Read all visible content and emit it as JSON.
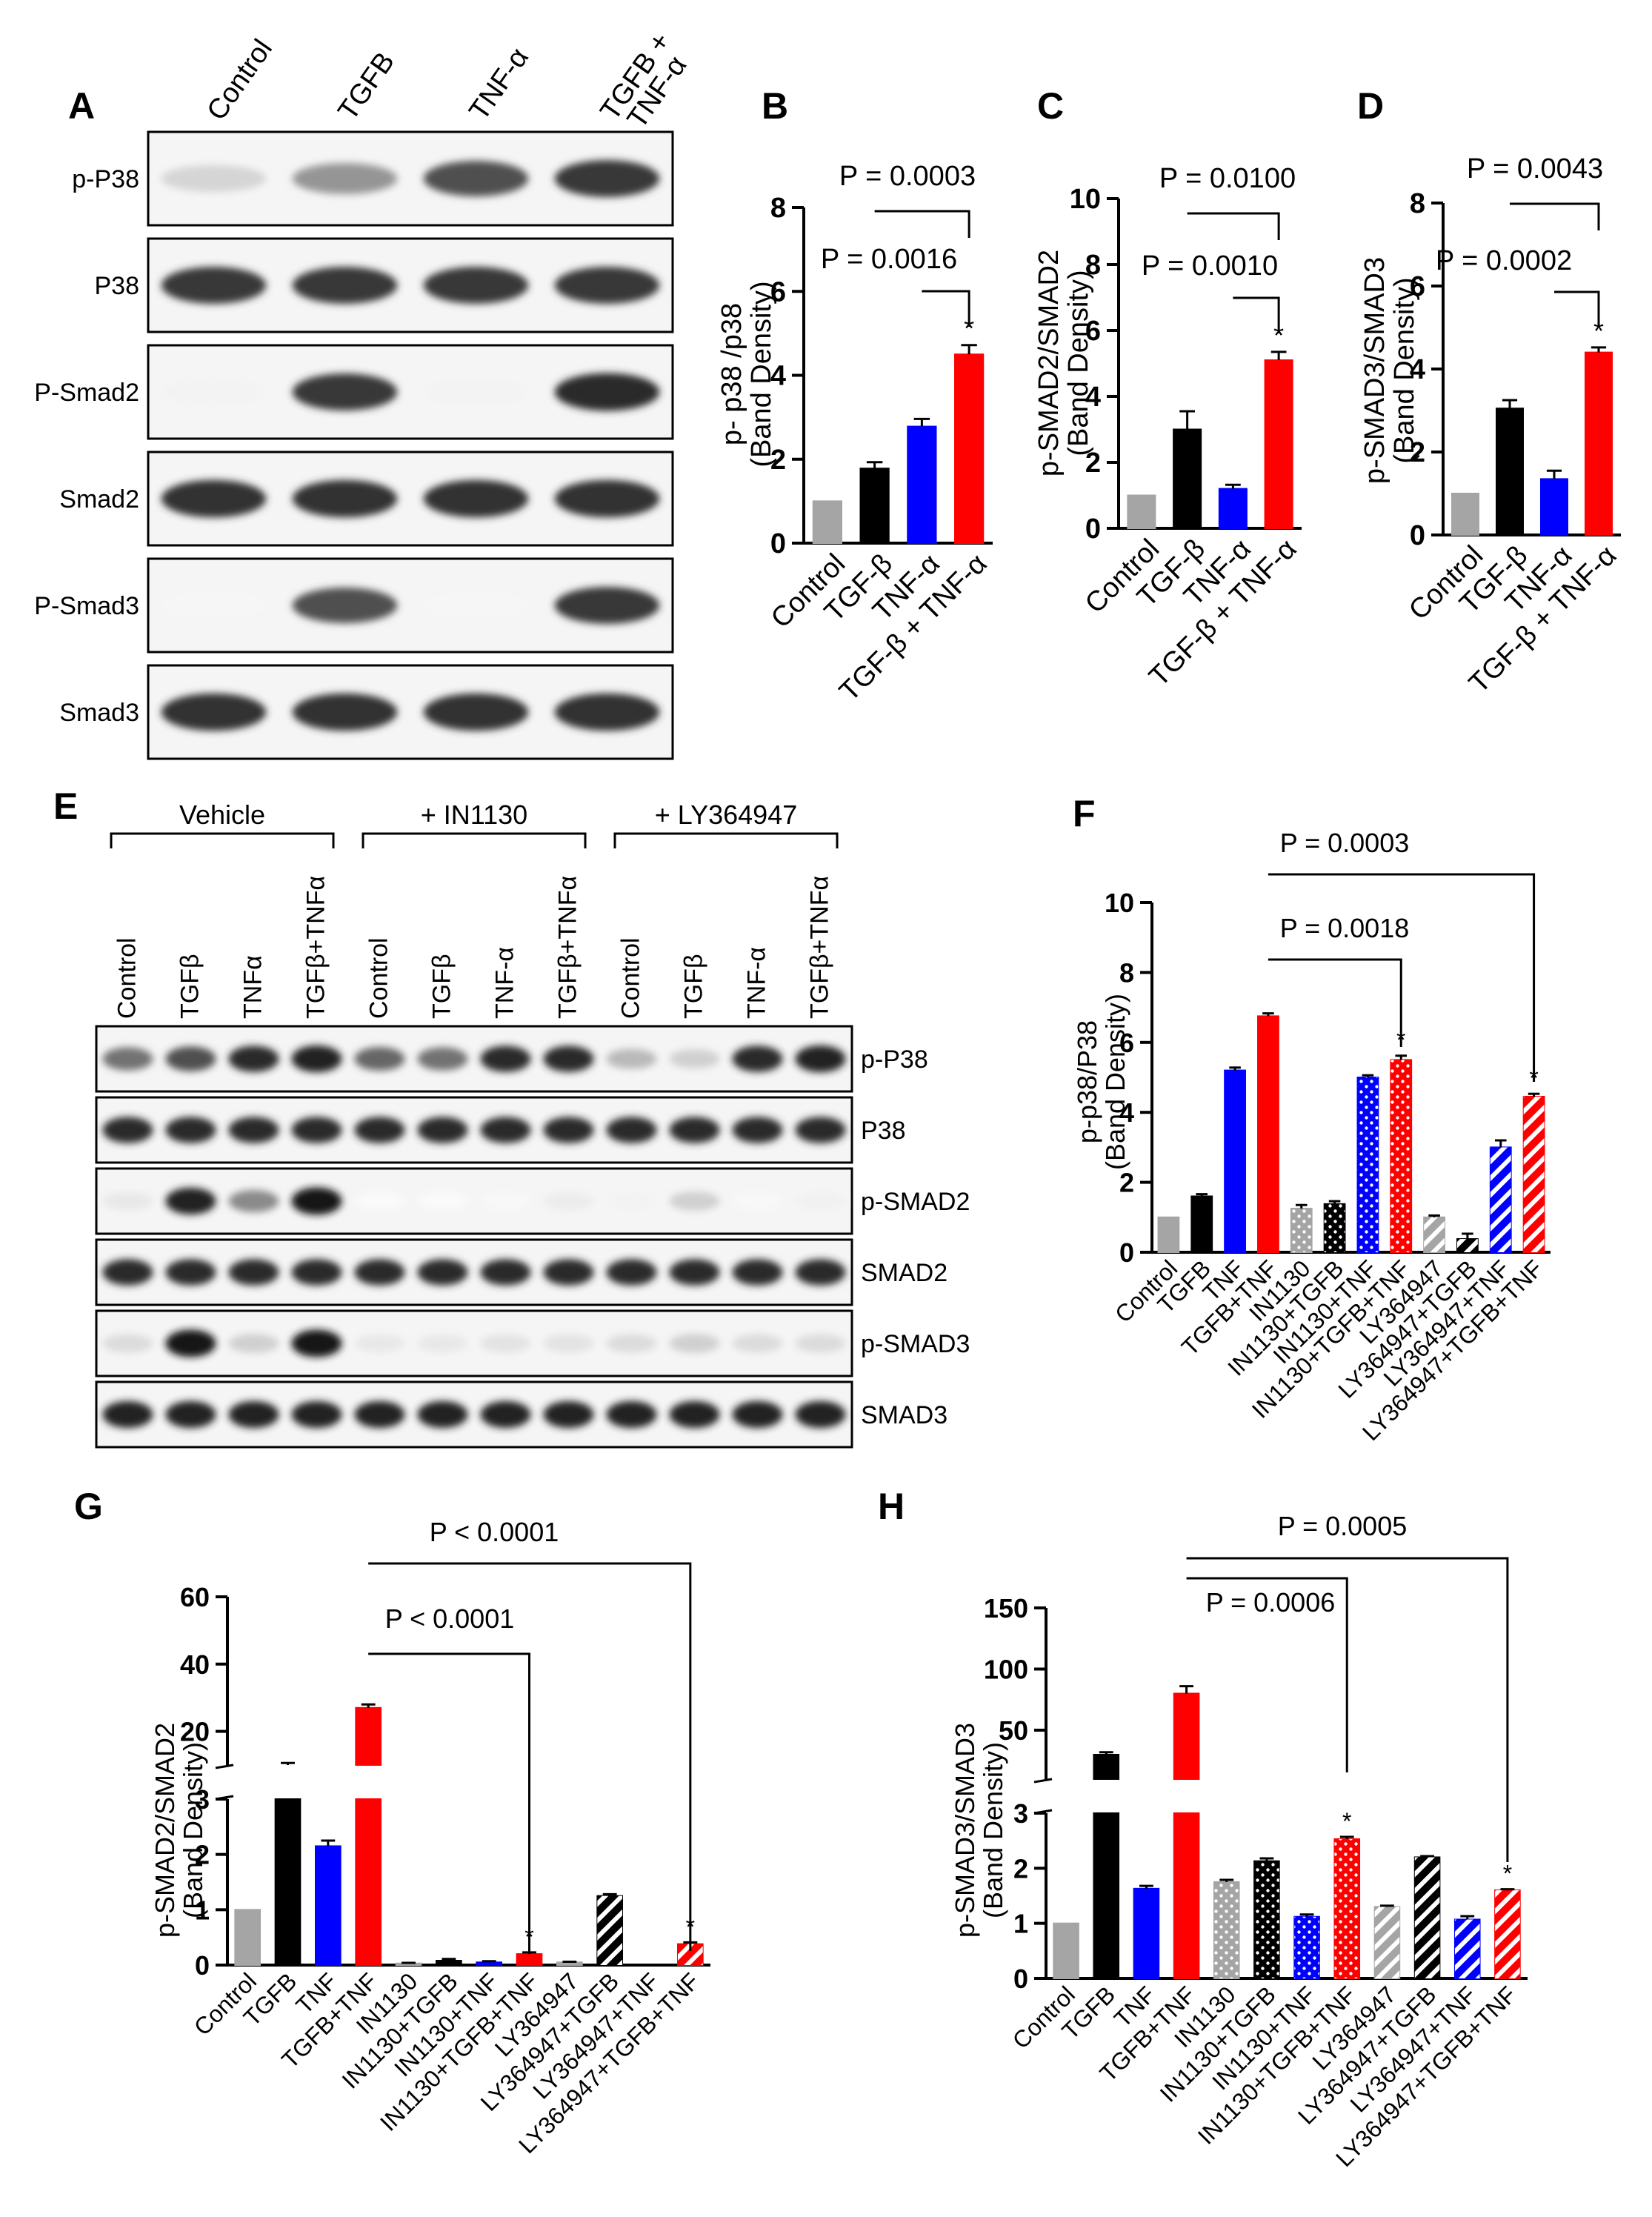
{
  "figure": {
    "panel_labels": [
      "A",
      "B",
      "C",
      "D",
      "E",
      "F",
      "G",
      "H"
    ]
  },
  "blot_A": {
    "lanes": [
      "Control",
      "TGFB",
      "TNF-α",
      "TGFB +\nTNF-α"
    ],
    "rows": [
      "p-P38",
      "P38",
      "P-Smad2",
      "Smad2",
      "P-Smad3",
      "Smad3"
    ],
    "intensity": [
      [
        0.18,
        0.45,
        0.75,
        0.85
      ],
      [
        0.85,
        0.85,
        0.85,
        0.85
      ],
      [
        0.05,
        0.85,
        0.05,
        0.9
      ],
      [
        0.88,
        0.88,
        0.88,
        0.88
      ],
      [
        0.04,
        0.75,
        0.04,
        0.85
      ],
      [
        0.88,
        0.88,
        0.88,
        0.88
      ]
    ]
  },
  "blot_E": {
    "groups": [
      "Vehicle",
      "+ IN1130",
      "+ LY364947"
    ],
    "lanes": [
      "Control",
      "TGFβ",
      "TNFα",
      "TGFβ+TNFα",
      "Control",
      "TGFβ",
      "TNF-α",
      "TGFβ+TNFα",
      "Control",
      "TGFβ",
      "TNF-α",
      "TGFβ+TNFα"
    ],
    "rows": [
      "p-P38",
      "P38",
      "p-SMAD2",
      "SMAD2",
      "p-SMAD3",
      "SMAD3"
    ],
    "intensity": [
      [
        0.6,
        0.75,
        0.9,
        0.95,
        0.65,
        0.6,
        0.9,
        0.9,
        0.3,
        0.2,
        0.9,
        0.95
      ],
      [
        0.9,
        0.9,
        0.9,
        0.9,
        0.9,
        0.9,
        0.9,
        0.9,
        0.9,
        0.9,
        0.9,
        0.9
      ],
      [
        0.1,
        0.95,
        0.5,
        1.0,
        0.02,
        0.02,
        0.03,
        0.08,
        0.05,
        0.2,
        0.03,
        0.06
      ],
      [
        0.9,
        0.9,
        0.9,
        0.9,
        0.9,
        0.9,
        0.9,
        0.9,
        0.9,
        0.9,
        0.9,
        0.9
      ],
      [
        0.15,
        1.0,
        0.2,
        1.0,
        0.1,
        0.1,
        0.12,
        0.12,
        0.15,
        0.2,
        0.15,
        0.15
      ],
      [
        0.95,
        0.95,
        0.95,
        0.95,
        0.95,
        0.95,
        0.95,
        0.95,
        0.95,
        0.95,
        0.95,
        0.95
      ]
    ]
  },
  "chart_data": [
    {
      "id": "B",
      "type": "bar",
      "title": "",
      "xlabel": "",
      "ylabel": [
        "p- p38 /p38",
        "(Band Density)"
      ],
      "ylim": [
        0,
        8
      ],
      "yticks": [
        "0",
        "2",
        "4",
        "6",
        "8"
      ],
      "categories": [
        "Control",
        "TGF-β",
        "TNF-α",
        "TGF-β + TNF-α"
      ],
      "values": [
        1.0,
        1.78,
        2.78,
        4.5
      ],
      "errors": [
        0,
        0.15,
        0.18,
        0.22
      ],
      "colors": [
        "#a5a5a5",
        "#000000",
        "#0000ff",
        "#ff0000"
      ],
      "stars": [
        3
      ],
      "brackets": [
        {
          "from": 1,
          "to": 3,
          "label": "P = 0.0003"
        },
        {
          "from": 2,
          "to": 3,
          "label": "P = 0.0016"
        }
      ]
    },
    {
      "id": "C",
      "type": "bar",
      "title": "",
      "xlabel": "",
      "ylabel": [
        "p-SMAD2/SMAD2",
        "(Band Density)"
      ],
      "ylim": [
        0,
        10
      ],
      "yticks": [
        "0",
        "2",
        "4",
        "6",
        "8",
        "10"
      ],
      "categories": [
        "Control",
        "TGF-β",
        "TNF-α",
        "TGF-β + TNF-α"
      ],
      "values": [
        1.0,
        3.0,
        1.2,
        5.1
      ],
      "errors": [
        0,
        0.55,
        0.12,
        0.25
      ],
      "colors": [
        "#a5a5a5",
        "#000000",
        "#0000ff",
        "#ff0000"
      ],
      "stars": [
        3
      ],
      "brackets": [
        {
          "from": 1,
          "to": 3,
          "label": "P = 0.0100"
        },
        {
          "from": 2,
          "to": 3,
          "label": "P = 0.0010"
        }
      ]
    },
    {
      "id": "D",
      "type": "bar",
      "title": "",
      "xlabel": "",
      "ylabel": [
        "p-SMAD3/SMAD3",
        "(Band Density)"
      ],
      "ylim": [
        0,
        8
      ],
      "yticks": [
        "0",
        "2",
        "4",
        "6",
        "8"
      ],
      "categories": [
        "Control",
        "TGF-β",
        "TNF-α",
        "TGF-β + TNF-α"
      ],
      "values": [
        1.0,
        3.05,
        1.35,
        4.4
      ],
      "errors": [
        0,
        0.2,
        0.2,
        0.12
      ],
      "colors": [
        "#a5a5a5",
        "#000000",
        "#0000ff",
        "#ff0000"
      ],
      "stars": [
        3
      ],
      "brackets": [
        {
          "from": 1,
          "to": 3,
          "label": "P = 0.0043"
        },
        {
          "from": 2,
          "to": 3,
          "label": "P = 0.0002"
        }
      ]
    },
    {
      "id": "F",
      "type": "bar",
      "title": "",
      "xlabel": "",
      "ylabel": [
        "p-p38/P38",
        "(Band Density)"
      ],
      "ylim": [
        0,
        10
      ],
      "yticks": [
        "0",
        "2",
        "4",
        "6",
        "8",
        "10"
      ],
      "categories": [
        "Control",
        "TGFB",
        "TNF",
        "TGFB+TNF",
        "IN1130",
        "IN1130+TGFB",
        "IN1130+TNF",
        "IN1130+TGFB+TNF",
        "LY364947",
        "LY364947+TGFB",
        "LY364947+TNF",
        "LY364947+TGFB+TNF"
      ],
      "values": [
        1.0,
        1.6,
        5.2,
        6.75,
        1.25,
        1.38,
        5.0,
        5.5,
        1.0,
        0.38,
        3.0,
        4.45
      ],
      "errors": [
        0,
        0.06,
        0.08,
        0.08,
        0.1,
        0.08,
        0.06,
        0.12,
        0.05,
        0.15,
        0.2,
        0.08
      ],
      "colors": [
        "#a5a5a5",
        "#000000",
        "#0000ff",
        "#ff0000",
        "#a5a5a5",
        "#000000",
        "#0000ff",
        "#ff0000",
        "#a5a5a5",
        "#000000",
        "#0000ff",
        "#ff0000"
      ],
      "patterns": [
        "solid",
        "solid",
        "solid",
        "solid",
        "dots",
        "dots",
        "dots",
        "dots",
        "stripes",
        "stripes",
        "stripes",
        "stripes"
      ],
      "stars": [
        7,
        11
      ],
      "brackets": [
        {
          "from": 3,
          "to": 7,
          "label": "P = 0.0018"
        },
        {
          "from": 3,
          "to": 11,
          "label": "P = 0.0003"
        }
      ]
    },
    {
      "id": "G",
      "type": "bar",
      "title": "",
      "xlabel": "",
      "ylabel": [
        "p-SMAD2/SMAD2",
        "(Band Density)"
      ],
      "ylim": [
        0,
        60
      ],
      "axis_break": [
        3,
        10
      ],
      "yticks_lower": [
        "0",
        "1",
        "2",
        "3"
      ],
      "yticks_upper": [
        "20",
        "40",
        "60"
      ],
      "categories": [
        "Control",
        "TGFB",
        "TNF",
        "TGFB+TNF",
        "IN1130",
        "IN1130+TGFB",
        "IN1130+TNF",
        "IN1130+TGFB+TNF",
        "LY364947",
        "LY364947+TGFB",
        "LY364947+TNF",
        "LY364947+TGFB+TNF"
      ],
      "values": [
        1.0,
        10.0,
        2.15,
        27.0,
        0.03,
        0.08,
        0.05,
        0.2,
        0.05,
        1.25,
        0.0,
        0.38
      ],
      "errors": [
        0,
        0.6,
        0.1,
        1.0,
        0.01,
        0.03,
        0.02,
        0.03,
        0.01,
        0.03,
        0,
        0.03
      ],
      "colors": [
        "#a5a5a5",
        "#000000",
        "#0000ff",
        "#ff0000",
        "#a5a5a5",
        "#000000",
        "#0000ff",
        "#ff0000",
        "#a5a5a5",
        "#000000",
        "#0000ff",
        "#ff0000"
      ],
      "patterns": [
        "solid",
        "solid",
        "solid",
        "solid",
        "solid",
        "solid",
        "solid",
        "solid",
        "solid",
        "stripes",
        "stripes",
        "stripes"
      ],
      "stars": [
        7,
        11
      ],
      "brackets": [
        {
          "from": 3,
          "to": 7,
          "label": "P < 0.0001"
        },
        {
          "from": 3,
          "to": 11,
          "label": "P < 0.0001"
        }
      ]
    },
    {
      "id": "H",
      "type": "bar",
      "title": "",
      "xlabel": "",
      "ylabel": [
        "p-SMAD3/SMAD3",
        "(Band Density)"
      ],
      "ylim": [
        0,
        150
      ],
      "axis_break": [
        3,
        10
      ],
      "yticks_lower": [
        "0",
        "1",
        "2",
        "3"
      ],
      "yticks_upper": [
        "50",
        "100",
        "150"
      ],
      "categories": [
        "Control",
        "TGFB",
        "TNF",
        "TGFB+TNF",
        "IN1130",
        "IN1130+TGFB",
        "IN1130+TNF",
        "IN1130+TGFB+TNF",
        "LY364947",
        "LY364947+TGFB",
        "LY364947+TNF",
        "LY364947+TGFB+TNF"
      ],
      "values": [
        1.0,
        30.0,
        1.63,
        80.0,
        1.75,
        2.13,
        1.12,
        2.53,
        1.3,
        2.2,
        1.07,
        1.6
      ],
      "errors": [
        0,
        2.0,
        0.05,
        6.0,
        0.04,
        0.05,
        0.04,
        0.04,
        0.02,
        0.02,
        0.06,
        0.02
      ],
      "colors": [
        "#a5a5a5",
        "#000000",
        "#0000ff",
        "#ff0000",
        "#a5a5a5",
        "#000000",
        "#0000ff",
        "#ff0000",
        "#a5a5a5",
        "#000000",
        "#0000ff",
        "#ff0000"
      ],
      "patterns": [
        "solid",
        "solid",
        "solid",
        "solid",
        "dots",
        "dots",
        "dots",
        "dots",
        "stripes",
        "stripes",
        "stripes",
        "stripes"
      ],
      "stars": [
        7,
        11
      ],
      "brackets": [
        {
          "from": 3,
          "to": 7,
          "label": "P = 0.0006"
        },
        {
          "from": 3,
          "to": 11,
          "label": "P = 0.0005"
        }
      ]
    }
  ]
}
